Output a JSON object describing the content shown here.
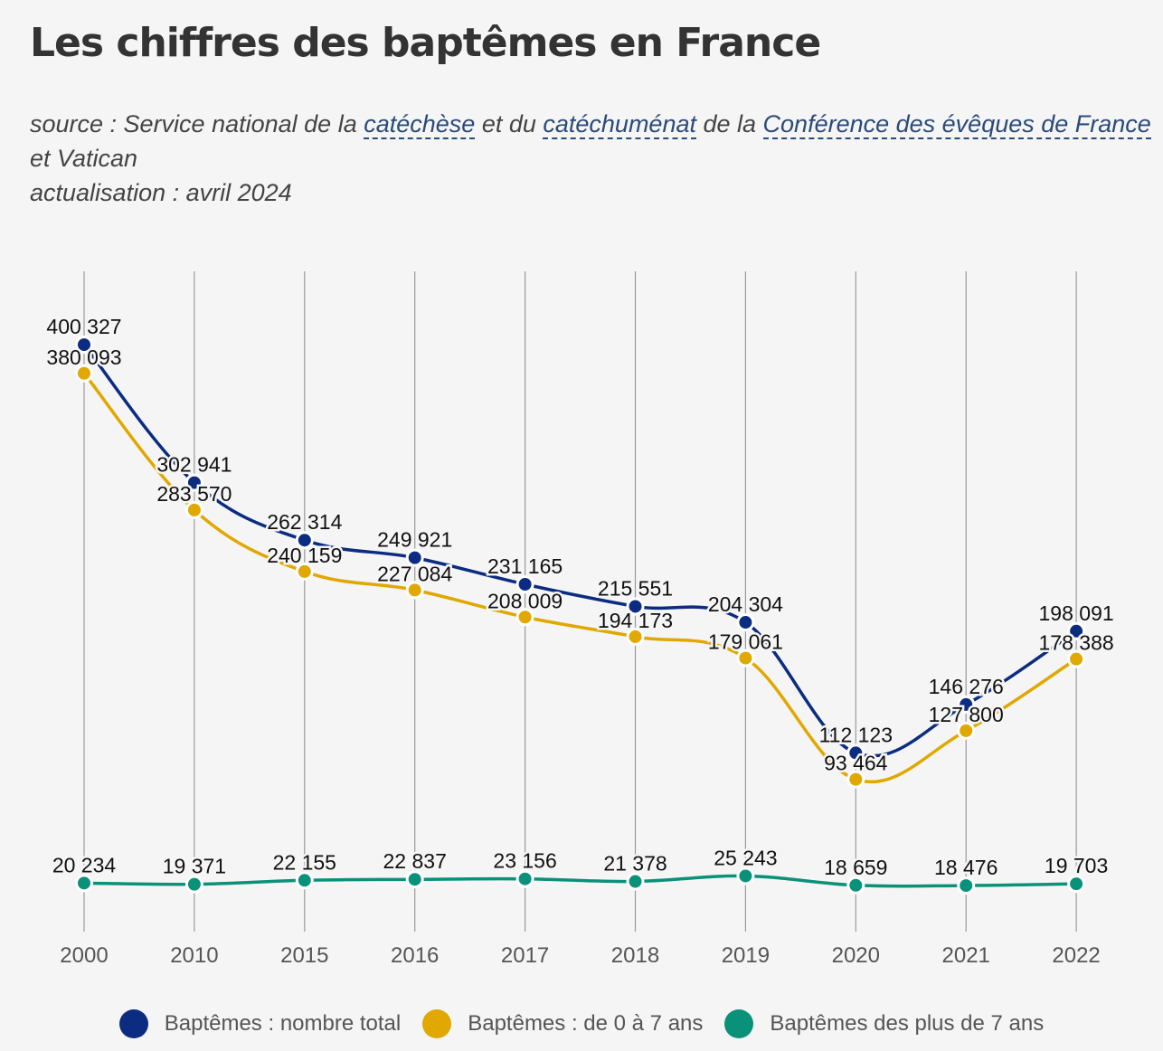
{
  "header": {
    "title": "Les chiffres des baptêmes en France",
    "source_prefix": "source : Service national de la ",
    "link_catechese": "catéchèse",
    "source_mid1": " et du ",
    "link_catechumenat": "catéchuménat",
    "source_mid2": " de la ",
    "link_conference": "Conférence des évêques de France",
    "source_suffix": " et Vatican",
    "update": "actualisation : avril 2024"
  },
  "colors": {
    "total": "#0b2c80",
    "young": "#e0a800",
    "older": "#0a917a",
    "grid": "#9a9a9a",
    "label": "#111111",
    "tick": "#555555"
  },
  "chart_data": {
    "type": "line",
    "categories": [
      "2000",
      "2010",
      "2015",
      "2016",
      "2017",
      "2018",
      "2019",
      "2020",
      "2021",
      "2022"
    ],
    "series": [
      {
        "name": "Baptêmes : nombre total",
        "values": [
          400327,
          302941,
          262314,
          249921,
          231165,
          215551,
          204304,
          112123,
          146276,
          198091
        ],
        "labels": [
          "400 327",
          "302 941",
          "262 314",
          "249 921",
          "231 165",
          "215 551",
          "204 304",
          "112 123",
          "146 276",
          "198 091"
        ]
      },
      {
        "name": "Baptêmes : de 0 à 7 ans",
        "values": [
          380093,
          283570,
          240159,
          227084,
          208009,
          194173,
          179061,
          93464,
          127800,
          178388
        ],
        "labels": [
          "380 093",
          "283 570",
          "240 159",
          "227 084",
          "208 009",
          "194 173",
          "179 061",
          "93 464",
          "127 800",
          "178 388"
        ]
      },
      {
        "name": "Baptêmes des plus de 7 ans",
        "values": [
          20234,
          19371,
          22155,
          22837,
          23156,
          21378,
          25243,
          18659,
          18476,
          19703
        ],
        "labels": [
          "20 234",
          "19 371",
          "22 155",
          "22 837",
          "23 156",
          "21 378",
          "25 243",
          "18 659",
          "18 476",
          "19 703"
        ]
      }
    ],
    "grid": "vertical",
    "legend": "bottom"
  }
}
